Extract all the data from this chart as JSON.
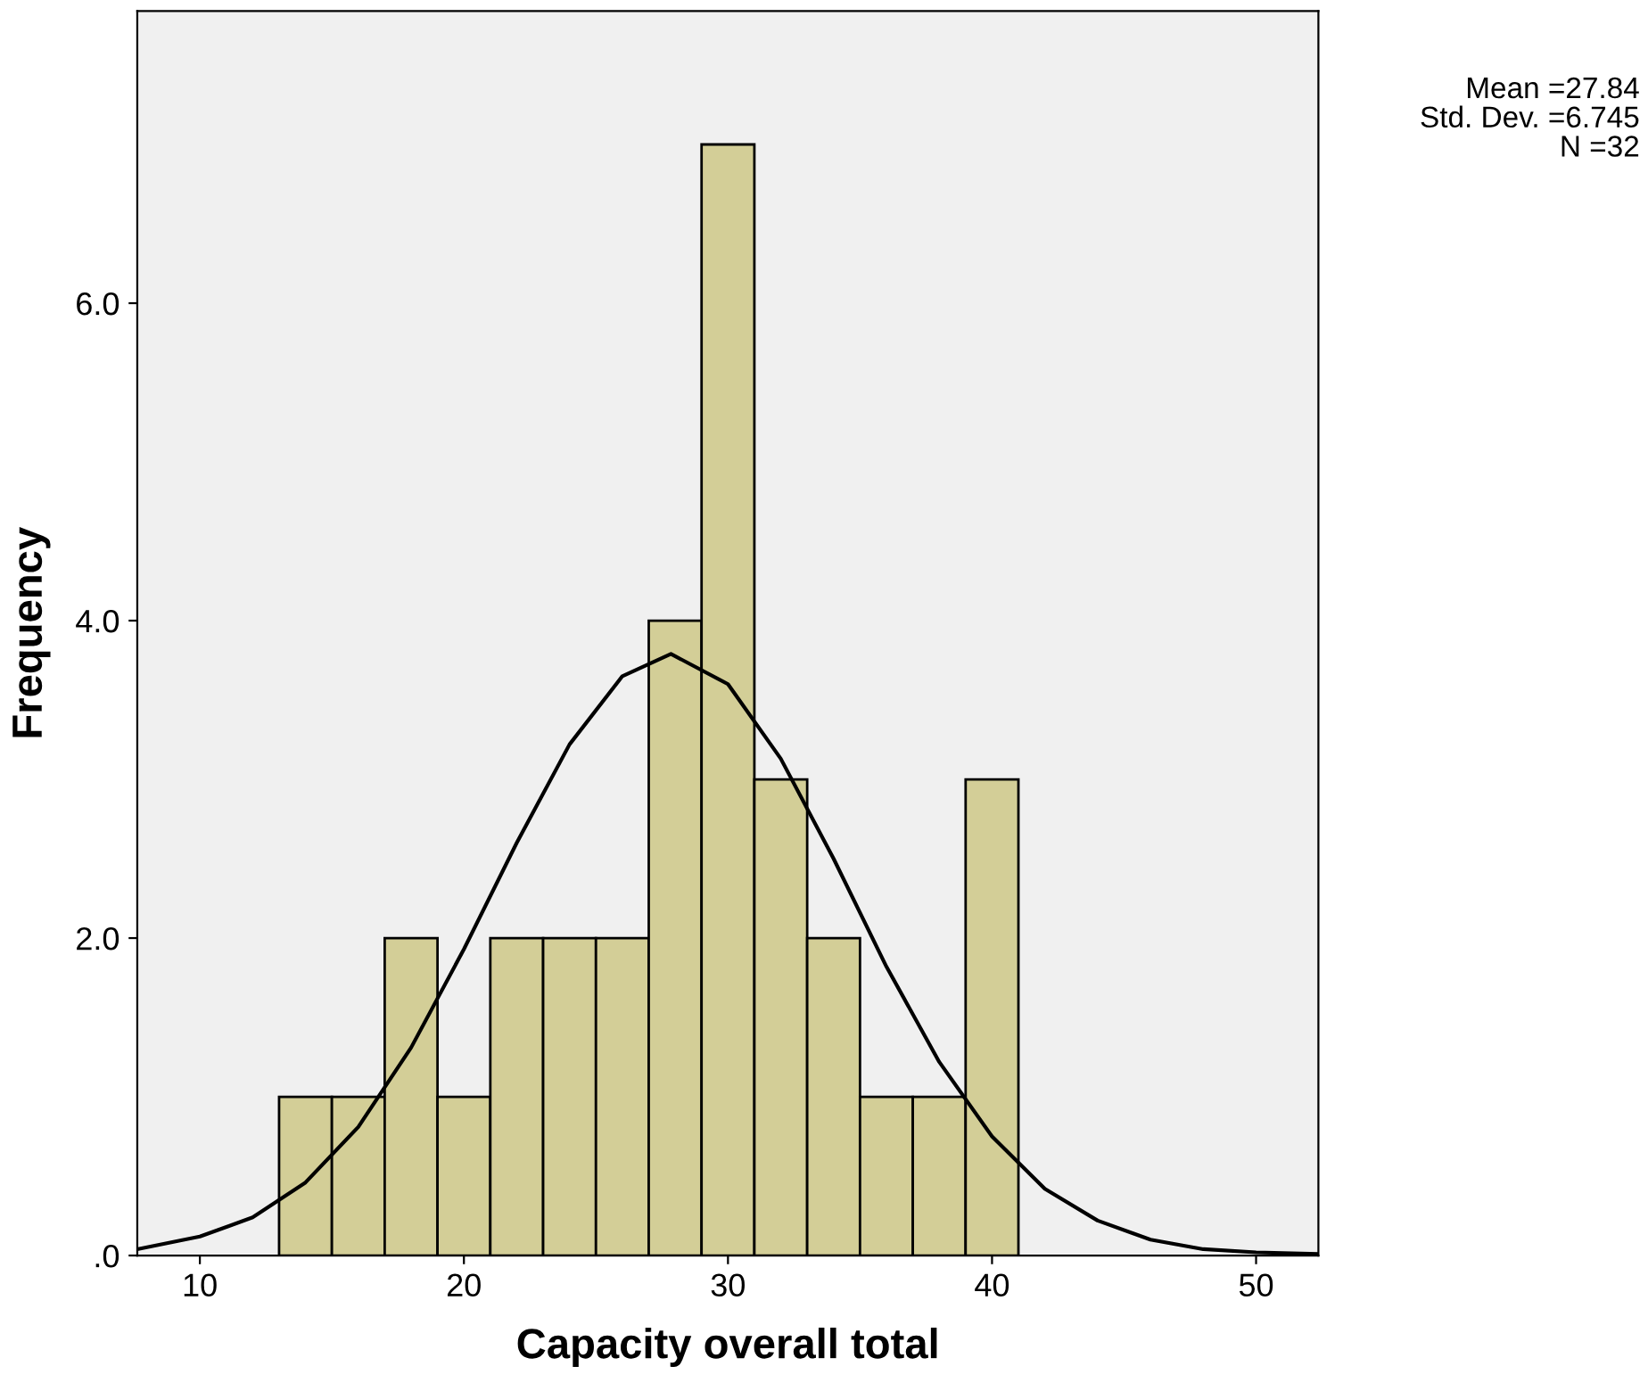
{
  "chart_data": {
    "type": "histogram",
    "xlabel": "Capacity overall total",
    "ylabel": "Frequency",
    "annotations": [
      "Mean =27.84",
      "Std. Dev. =6.745",
      "N =32"
    ],
    "series": [
      {
        "bins": [
          13,
          15,
          17,
          19,
          21,
          23,
          25,
          27,
          29,
          31,
          33,
          35,
          37,
          39,
          41
        ],
        "values": [
          1,
          1,
          2,
          1,
          2,
          2,
          2,
          4,
          7,
          3,
          2,
          1,
          1,
          3
        ],
        "color": "#d3ce97"
      },
      {
        "type": "line",
        "color": "#000000",
        "x": [
          7.63,
          10,
          12,
          14,
          16,
          18,
          20,
          22,
          24,
          26,
          27.84,
          30,
          32,
          34,
          36,
          38,
          40,
          42,
          44,
          46,
          48,
          50,
          52.36
        ],
        "values": [
          0.04,
          0.12,
          0.24,
          0.46,
          0.81,
          1.31,
          1.93,
          2.6,
          3.22,
          3.65,
          3.79,
          3.6,
          3.13,
          2.5,
          1.82,
          1.22,
          0.75,
          0.42,
          0.22,
          0.1,
          0.04,
          0.02,
          0.01
        ]
      }
    ],
    "xlim": [
      7.63,
      52.36
    ],
    "ylim": [
      0,
      7.84
    ],
    "xticks": [
      10,
      20,
      30,
      40,
      50
    ],
    "yticks": [
      {
        "value": 0,
        "label": ".0"
      },
      {
        "value": 2,
        "label": "2.0"
      },
      {
        "value": 4,
        "label": "4.0"
      },
      {
        "value": 6,
        "label": "6.0"
      }
    ],
    "grid": false,
    "legend": false
  }
}
